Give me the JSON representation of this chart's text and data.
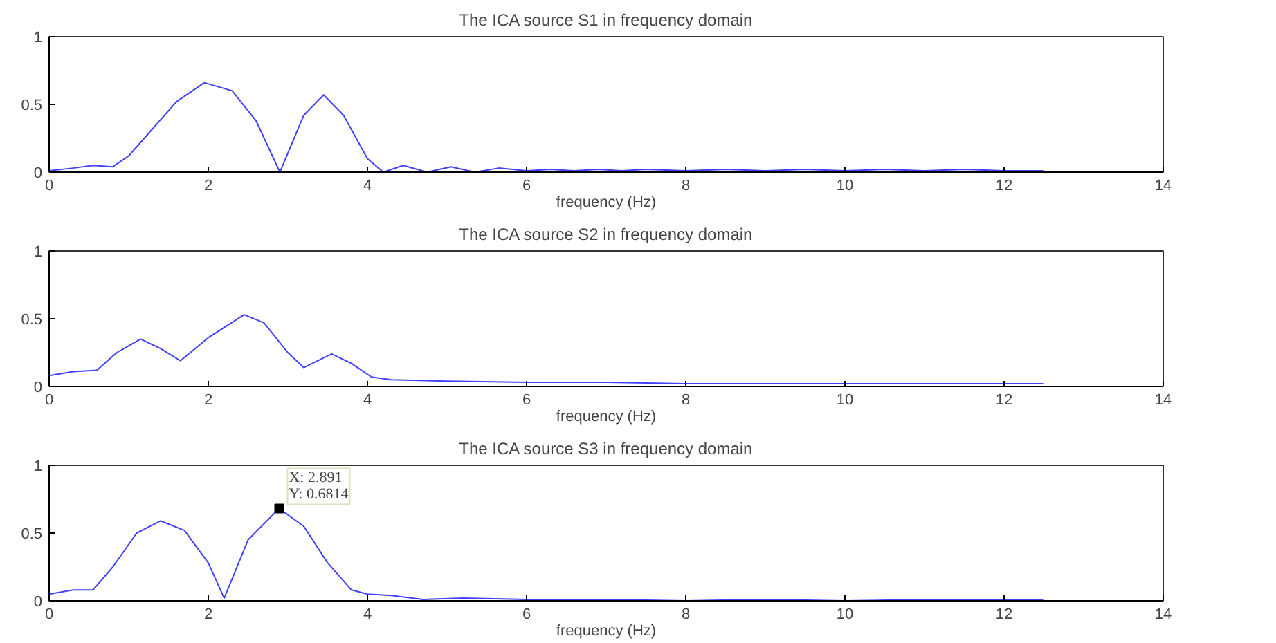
{
  "chart_data": [
    {
      "type": "line",
      "title": "The ICA source S1 in frequency domain",
      "xlabel": "frequency (Hz)",
      "xlim": [
        0,
        14
      ],
      "xticks": [
        0,
        2,
        4,
        6,
        8,
        10,
        12,
        14
      ],
      "ylim": [
        0,
        1
      ],
      "yticks": [
        0,
        0.5,
        1
      ],
      "grid": false,
      "x": [
        0,
        0.3,
        0.55,
        0.8,
        1.0,
        1.3,
        1.6,
        1.95,
        2.3,
        2.6,
        2.9,
        3.2,
        3.45,
        3.7,
        4.0,
        4.2,
        4.45,
        4.75,
        5.05,
        5.35,
        5.65,
        6.0,
        6.3,
        6.6,
        6.9,
        7.2,
        7.5,
        8.0,
        8.5,
        9.0,
        9.5,
        10.0,
        10.5,
        11.0,
        11.5,
        12.0,
        12.5
      ],
      "series": [
        {
          "color": "#4040ff",
          "values": [
            0.01,
            0.03,
            0.05,
            0.04,
            0.12,
            0.32,
            0.52,
            0.66,
            0.6,
            0.38,
            0.0,
            0.42,
            0.57,
            0.42,
            0.1,
            0.0,
            0.05,
            0.0,
            0.04,
            0.0,
            0.03,
            0.01,
            0.02,
            0.01,
            0.02,
            0.01,
            0.02,
            0.01,
            0.02,
            0.01,
            0.02,
            0.01,
            0.02,
            0.01,
            0.02,
            0.01,
            0.01
          ]
        }
      ]
    },
    {
      "type": "line",
      "title": "The ICA source S2 in frequency domain",
      "xlabel": "frequency (Hz)",
      "xlim": [
        0,
        14
      ],
      "xticks": [
        0,
        2,
        4,
        6,
        8,
        10,
        12,
        14
      ],
      "ylim": [
        0,
        1
      ],
      "yticks": [
        0,
        0.5,
        1
      ],
      "grid": false,
      "x": [
        0,
        0.3,
        0.6,
        0.85,
        1.15,
        1.4,
        1.65,
        2.0,
        2.45,
        2.7,
        3.0,
        3.2,
        3.55,
        3.8,
        4.05,
        4.3,
        5.0,
        6.0,
        7.0,
        8.0,
        9.0,
        10.0,
        11.0,
        12.5
      ],
      "series": [
        {
          "color": "#4040ff",
          "values": [
            0.08,
            0.11,
            0.12,
            0.25,
            0.35,
            0.28,
            0.19,
            0.36,
            0.53,
            0.47,
            0.25,
            0.14,
            0.24,
            0.17,
            0.07,
            0.05,
            0.04,
            0.03,
            0.03,
            0.02,
            0.02,
            0.02,
            0.02,
            0.02
          ]
        }
      ]
    },
    {
      "type": "line",
      "title": "The ICA source S3 in frequency domain",
      "xlabel": "frequency (Hz)",
      "xlim": [
        0,
        14
      ],
      "xticks": [
        0,
        2,
        4,
        6,
        8,
        10,
        12,
        14
      ],
      "ylim": [
        0,
        1
      ],
      "yticks": [
        0,
        0.5,
        1
      ],
      "grid": false,
      "x": [
        0,
        0.3,
        0.55,
        0.8,
        1.1,
        1.4,
        1.7,
        2.0,
        2.2,
        2.5,
        2.891,
        3.2,
        3.5,
        3.8,
        4.0,
        4.3,
        4.7,
        5.2,
        6.0,
        7.0,
        8.0,
        9.0,
        10.0,
        11.0,
        12.5
      ],
      "series": [
        {
          "color": "#4040ff",
          "values": [
            0.05,
            0.08,
            0.08,
            0.25,
            0.5,
            0.59,
            0.52,
            0.28,
            0.02,
            0.45,
            0.6814,
            0.55,
            0.28,
            0.08,
            0.05,
            0.04,
            0.01,
            0.02,
            0.01,
            0.01,
            0.0,
            0.01,
            0.0,
            0.01,
            0.01
          ]
        }
      ],
      "annotations": [
        {
          "text": "X: 2.891\nY: 0.6814",
          "x": 2.891,
          "y": 0.6814
        }
      ]
    }
  ]
}
